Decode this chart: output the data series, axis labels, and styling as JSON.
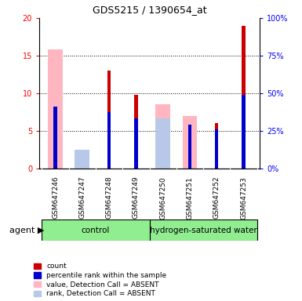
{
  "title": "GDS5215 / 1390654_at",
  "samples": [
    "GSM647246",
    "GSM647247",
    "GSM647248",
    "GSM647249",
    "GSM647250",
    "GSM647251",
    "GSM647252",
    "GSM647253"
  ],
  "ylim_left": [
    0,
    20
  ],
  "ylim_right": [
    0,
    100
  ],
  "yticks_left": [
    0,
    5,
    10,
    15,
    20
  ],
  "yticks_right": [
    0,
    25,
    50,
    75,
    100
  ],
  "left_tick_labels": [
    "0",
    "5",
    "10",
    "15",
    "20"
  ],
  "right_tick_labels": [
    "0%",
    "25%",
    "50%",
    "75%",
    "100%"
  ],
  "count_red": [
    0,
    0,
    13,
    9.8,
    0,
    0,
    6,
    19
  ],
  "rank_blue": [
    8.2,
    0,
    7.5,
    6.7,
    0,
    5.8,
    5.2,
    9.8
  ],
  "value_pink": [
    15.8,
    1.1,
    0,
    0,
    8.5,
    7.0,
    0,
    0
  ],
  "rank_lightblue": [
    0,
    2.5,
    0,
    0,
    6.7,
    0,
    0,
    0
  ],
  "count_color": "#CC0000",
  "rank_color": "#0000CC",
  "value_absent_color": "#FFB6C1",
  "rank_absent_color": "#B8C8E8",
  "legend_items": [
    "count",
    "percentile rank within the sample",
    "value, Detection Call = ABSENT",
    "rank, Detection Call = ABSENT"
  ],
  "legend_colors": [
    "#CC0000",
    "#0000CC",
    "#FFB6C1",
    "#B8C8E8"
  ],
  "bg_group_control": "#90EE90",
  "bg_group_hw": "#90EE90",
  "bg_sample_area": "#C8C8C8",
  "bg_plot": "#FFFFFF",
  "gridline_y": [
    5,
    10,
    15
  ]
}
